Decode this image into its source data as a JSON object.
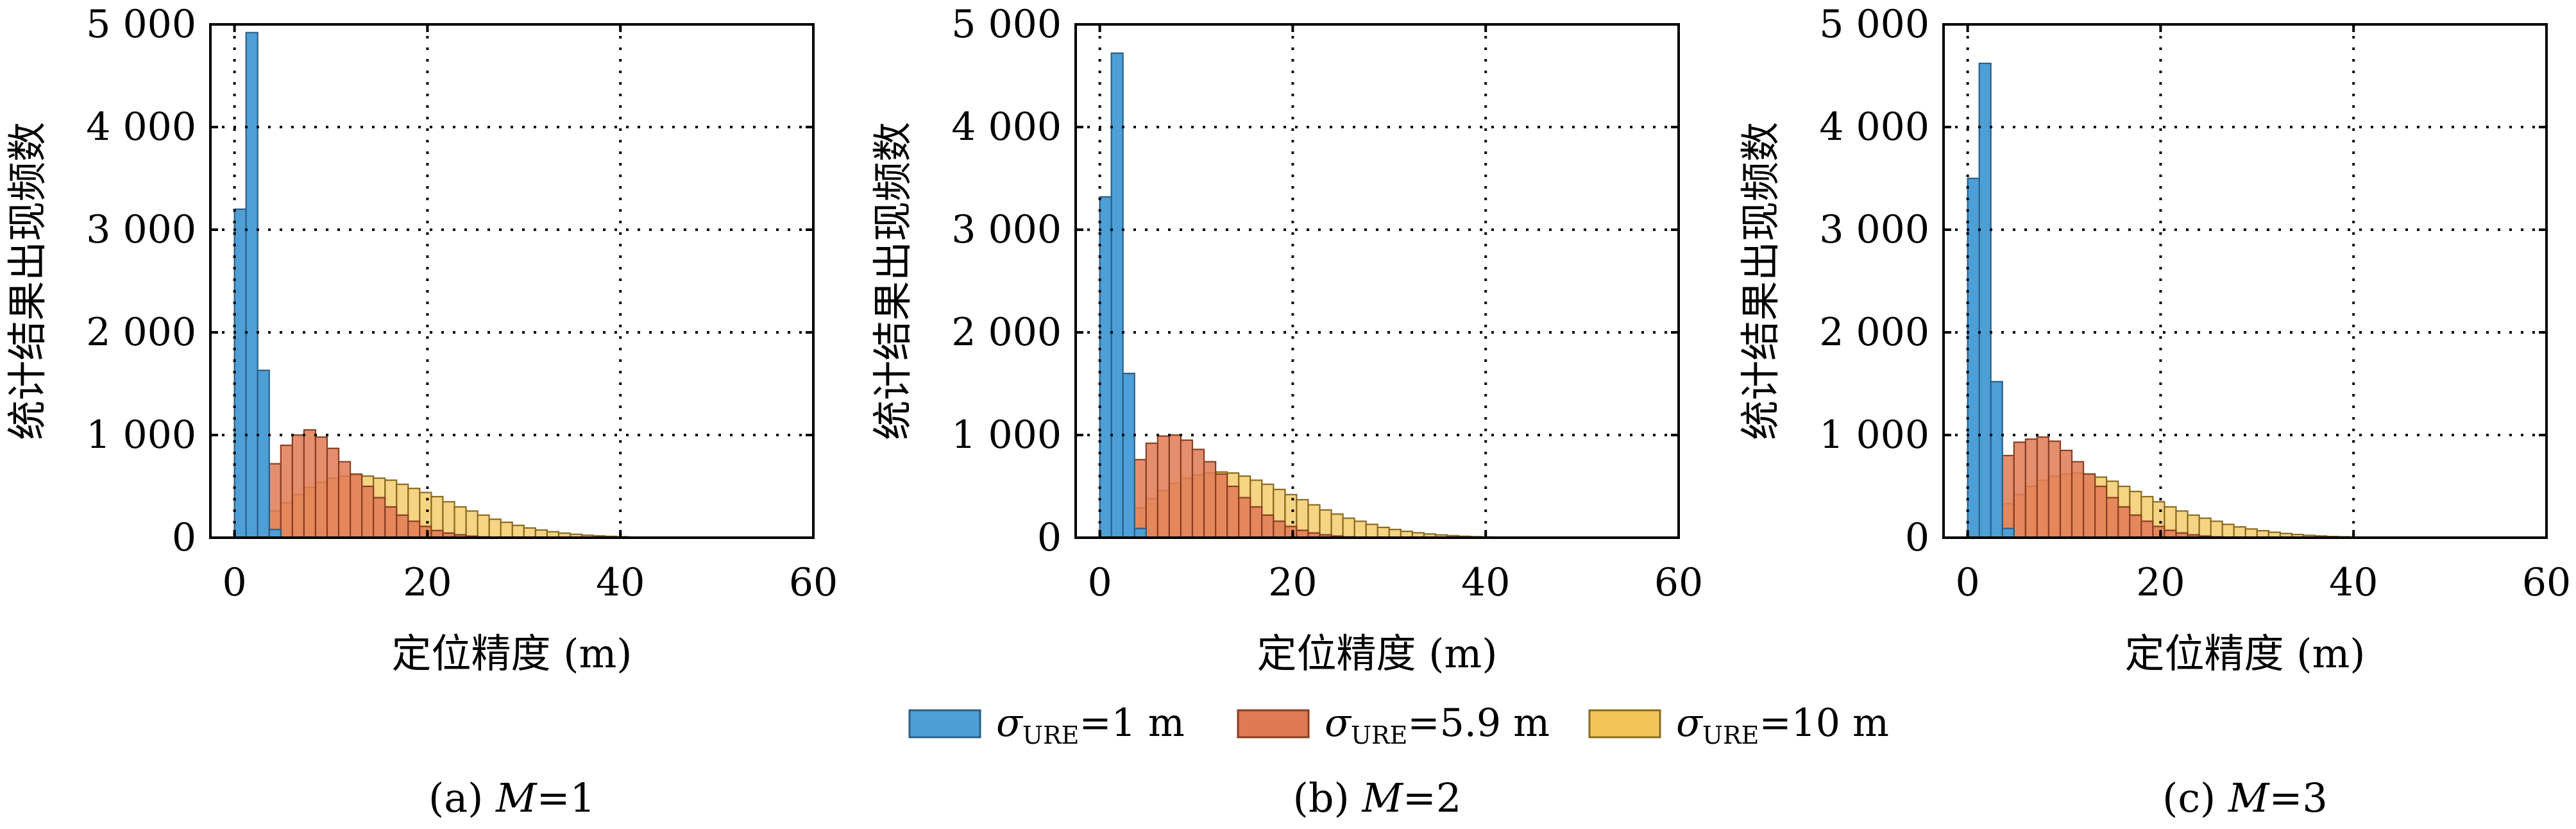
{
  "chart_data": [
    {
      "type": "bar",
      "caption_prefix": "(a) ",
      "caption_var": "M",
      "caption_value": "=1",
      "xlabel": "定位精度 (m)",
      "ylabel": "统计结果出现频数",
      "xlim": [
        0,
        60
      ],
      "ylim": [
        0,
        5000
      ],
      "xticks": [
        "0",
        "20",
        "40",
        "60"
      ],
      "yticks": [
        "0",
        "1 000",
        "2 000",
        "3 000",
        "4 000",
        "5 000"
      ],
      "grid": true,
      "bin_width": 1.2,
      "series": [
        {
          "key": "s1",
          "values": [
            3200,
            4920,
            1630,
            80
          ]
        },
        {
          "key": "s2",
          "values": [
            40,
            180,
            420,
            720,
            900,
            1000,
            1050,
            980,
            870,
            740,
            620,
            500,
            390,
            300,
            220,
            160,
            110,
            70,
            45,
            28,
            15,
            8,
            4
          ]
        },
        {
          "key": "s3",
          "values": [
            15,
            70,
            160,
            260,
            340,
            420,
            490,
            540,
            580,
            600,
            610,
            600,
            580,
            560,
            520,
            480,
            440,
            400,
            350,
            300,
            260,
            220,
            180,
            150,
            120,
            95,
            75,
            58,
            44,
            33,
            24,
            18,
            13,
            9,
            6,
            4,
            3,
            2
          ]
        }
      ]
    },
    {
      "type": "bar",
      "caption_prefix": "(b) ",
      "caption_var": "M",
      "caption_value": "=2",
      "xlabel": "定位精度 (m)",
      "ylabel": "统计结果出现频数",
      "xlim": [
        0,
        60
      ],
      "ylim": [
        0,
        5000
      ],
      "xticks": [
        "0",
        "20",
        "40",
        "60"
      ],
      "yticks": [
        "0",
        "1 000",
        "2 000",
        "3 000",
        "4 000",
        "5 000"
      ],
      "grid": true,
      "bin_width": 1.2,
      "series": [
        {
          "key": "s1",
          "values": [
            3320,
            4720,
            1600,
            90
          ]
        },
        {
          "key": "s2",
          "values": [
            60,
            220,
            480,
            760,
            920,
            990,
            1000,
            950,
            860,
            740,
            620,
            500,
            390,
            300,
            220,
            160,
            110,
            72,
            46,
            28,
            16,
            8,
            4
          ]
        },
        {
          "key": "s3",
          "values": [
            20,
            90,
            190,
            290,
            380,
            460,
            530,
            580,
            610,
            630,
            640,
            630,
            600,
            560,
            520,
            470,
            420,
            370,
            320,
            270,
            230,
            190,
            160,
            130,
            100,
            80,
            62,
            48,
            36,
            27,
            20,
            14,
            10,
            7,
            5,
            3,
            2
          ]
        }
      ]
    },
    {
      "type": "bar",
      "caption_prefix": "(c) ",
      "caption_var": "M",
      "caption_value": "=3",
      "xlabel": "定位精度 (m)",
      "ylabel": "统计结果出现频数",
      "xlim": [
        0,
        60
      ],
      "ylim": [
        0,
        5000
      ],
      "xticks": [
        "0",
        "20",
        "40",
        "60"
      ],
      "yticks": [
        "0",
        "1 000",
        "2 000",
        "3 000",
        "4 000",
        "5 000"
      ],
      "grid": true,
      "bin_width": 1.2,
      "series": [
        {
          "key": "s1",
          "values": [
            3500,
            4620,
            1520,
            90
          ]
        },
        {
          "key": "s2",
          "values": [
            80,
            260,
            520,
            800,
            930,
            960,
            980,
            940,
            850,
            740,
            620,
            500,
            390,
            300,
            220,
            160,
            110,
            72,
            46,
            28,
            16,
            8,
            4
          ]
        },
        {
          "key": "s3",
          "values": [
            25,
            110,
            220,
            330,
            420,
            500,
            560,
            600,
            620,
            630,
            620,
            590,
            550,
            500,
            450,
            400,
            350,
            300,
            260,
            220,
            190,
            160,
            130,
            105,
            85,
            68,
            53,
            41,
            31,
            23,
            17,
            12,
            9,
            6,
            4,
            3,
            2
          ]
        }
      ]
    }
  ],
  "legend": [
    {
      "key": "s1",
      "symbol": "σ",
      "subscript": "URE",
      "value": "=1 m",
      "color": "#4d9fd6",
      "stroke": "#2c5f86"
    },
    {
      "key": "s2",
      "symbol": "σ",
      "subscript": "URE",
      "value": "=5.9 m",
      "color": "#e07a55",
      "stroke": "#8a3e22"
    },
    {
      "key": "s3",
      "symbol": "σ",
      "subscript": "URE",
      "value": "=10 m",
      "color": "#f2c55a",
      "stroke": "#8a6a1e"
    }
  ]
}
